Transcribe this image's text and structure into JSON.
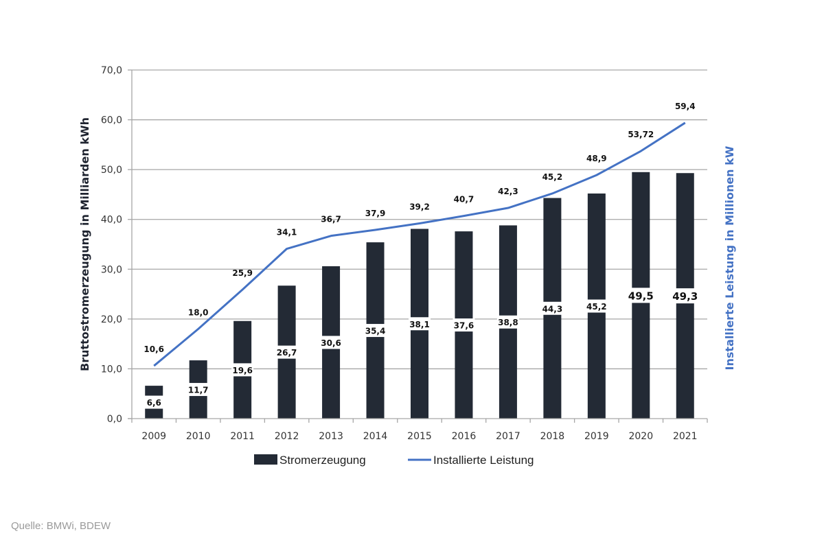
{
  "chart_data": {
    "type": "bar",
    "categories": [
      "2009",
      "2010",
      "2011",
      "2012",
      "2013",
      "2014",
      "2015",
      "2016",
      "2017",
      "2018",
      "2019",
      "2020",
      "2021"
    ],
    "series": [
      {
        "name": "Stromerzeugung",
        "type": "bar",
        "color": "#232a35",
        "values": [
          6.6,
          11.7,
          19.6,
          26.7,
          30.6,
          35.4,
          38.1,
          37.6,
          38.8,
          44.3,
          45.2,
          49.5,
          49.3
        ],
        "labels": [
          "6,6",
          "11,7",
          "19,6",
          "26,7",
          "30,6",
          "35,4",
          "38,1",
          "37,6",
          "38,8",
          "44,3",
          "45,2",
          "49,5",
          "49,3"
        ]
      },
      {
        "name": "Installierte Leistung",
        "type": "line",
        "color": "#4472c4",
        "values": [
          10.6,
          18.0,
          25.9,
          34.1,
          36.7,
          37.9,
          39.2,
          40.7,
          42.3,
          45.2,
          48.9,
          53.72,
          59.4
        ],
        "labels": [
          "10,6",
          "18,0",
          "25,9",
          "34,1",
          "36,7",
          "37,9",
          "39,2",
          "40,7",
          "42,3",
          "45,2",
          "48,9",
          "53,72",
          "59,4"
        ]
      }
    ],
    "ylabel": "Bruttostromerzeugung in Milliarden kWh",
    "ylabel_right": "Installierte Leistung in Millionen kW",
    "ylim": [
      0,
      70
    ],
    "yticks": [
      "0,0",
      "10,0",
      "20,0",
      "30,0",
      "40,0",
      "50,0",
      "60,0",
      "70,0"
    ],
    "grid": true,
    "legend": "bottom"
  },
  "source": "Quelle: BMWi, BDEW"
}
